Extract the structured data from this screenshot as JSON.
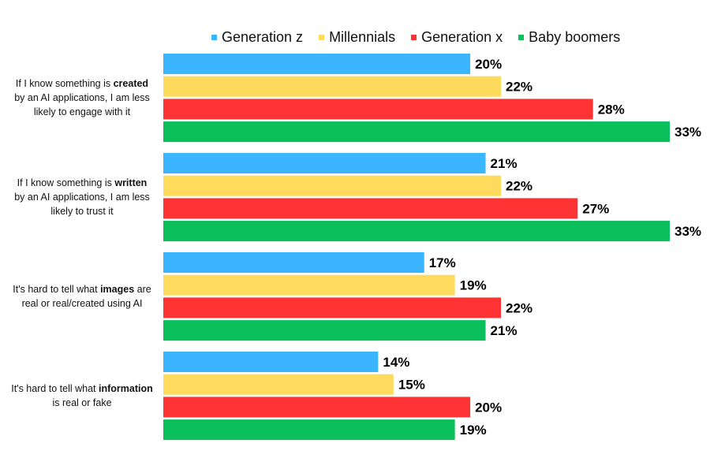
{
  "chart_data": {
    "type": "bar",
    "orientation": "horizontal",
    "title": "",
    "xlabel": "",
    "ylabel": "",
    "xlim": [
      0,
      33
    ],
    "legend_position": "top",
    "value_suffix": "%",
    "categories": [
      {
        "parts": [
          {
            "text": "If I know something is "
          },
          {
            "text": "created",
            "bold": true
          },
          {
            "text": " by an AI applications, I am less likely to engage with it"
          }
        ]
      },
      {
        "parts": [
          {
            "text": "If I know something is "
          },
          {
            "text": "written",
            "bold": true
          },
          {
            "text": " by an AI applications, I am less likely to trust it"
          }
        ]
      },
      {
        "parts": [
          {
            "text": "It's hard to tell what "
          },
          {
            "text": "images",
            "bold": true
          },
          {
            "text": " are real  or real/created using AI"
          }
        ]
      },
      {
        "parts": [
          {
            "text": "It's hard to tell what "
          },
          {
            "text": "information",
            "bold": true
          },
          {
            "text": " is real or fake"
          }
        ]
      }
    ],
    "series": [
      {
        "name": "Generation z",
        "color": "#3bb5fd",
        "values": [
          20,
          21,
          17,
          14
        ]
      },
      {
        "name": "Millennials",
        "color": "#fedb5c",
        "values": [
          22,
          22,
          19,
          15
        ]
      },
      {
        "name": "Generation x",
        "color": "#fe3434",
        "values": [
          28,
          27,
          22,
          20
        ]
      },
      {
        "name": "Baby boomers",
        "color": "#0bbf5b",
        "values": [
          33,
          33,
          21,
          19
        ]
      }
    ]
  }
}
